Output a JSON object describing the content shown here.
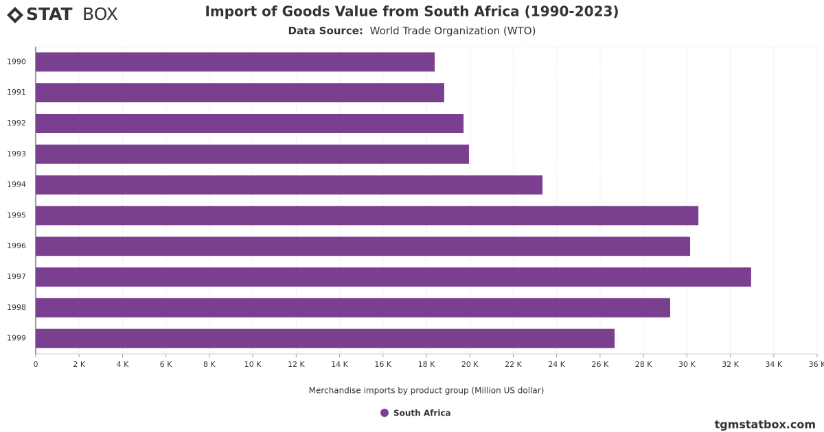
{
  "brand": {
    "bold": "STAT",
    "light": "BOX"
  },
  "watermark": "tgmstatbox.com",
  "chart_data": {
    "type": "hbar",
    "title": "Import of Goods Value from South Africa (1990-2023)",
    "subtitle_label": "Data Source:",
    "subtitle": "World Trade Organization (WTO)",
    "x_label": "Merchandise imports by product group (Million US dollar)",
    "categories": [
      "1990",
      "1991",
      "1992",
      "1993",
      "1994",
      "1995",
      "1996",
      "1997",
      "1998",
      "1999"
    ],
    "series": [
      {
        "name": "South Africa",
        "color": "#7b3f8f",
        "values": [
          18380,
          18820,
          19710,
          19960,
          23350,
          30530,
          30150,
          32960,
          29230,
          26670
        ]
      }
    ],
    "xlim": [
      0,
      36000
    ],
    "xticks": [
      0,
      {
        "value": 2000,
        "label": "2 K"
      },
      {
        "value": 4000,
        "label": "4 K"
      },
      {
        "value": 6000,
        "label": "6 K"
      },
      {
        "value": 8000,
        "label": "8 K"
      },
      {
        "value": 10000,
        "label": "10 K"
      },
      {
        "value": 12000,
        "label": "12 K"
      },
      {
        "value": 14000,
        "label": "14 K"
      },
      {
        "value": 16000,
        "label": "16 K"
      },
      {
        "value": 18000,
        "label": "18 K"
      },
      {
        "value": 20000,
        "label": "20 K"
      },
      {
        "value": 22000,
        "label": "22 K"
      },
      {
        "value": 24000,
        "label": "24 K"
      },
      {
        "value": 26000,
        "label": "26 K"
      },
      {
        "value": 28000,
        "label": "28 K"
      },
      {
        "value": 30000,
        "label": "30 K"
      },
      {
        "value": 32000,
        "label": "32 K"
      },
      {
        "value": 34000,
        "label": "34 K"
      },
      {
        "value": 36000,
        "label": "36 K"
      }
    ],
    "grid": true,
    "legend": "bottom"
  }
}
